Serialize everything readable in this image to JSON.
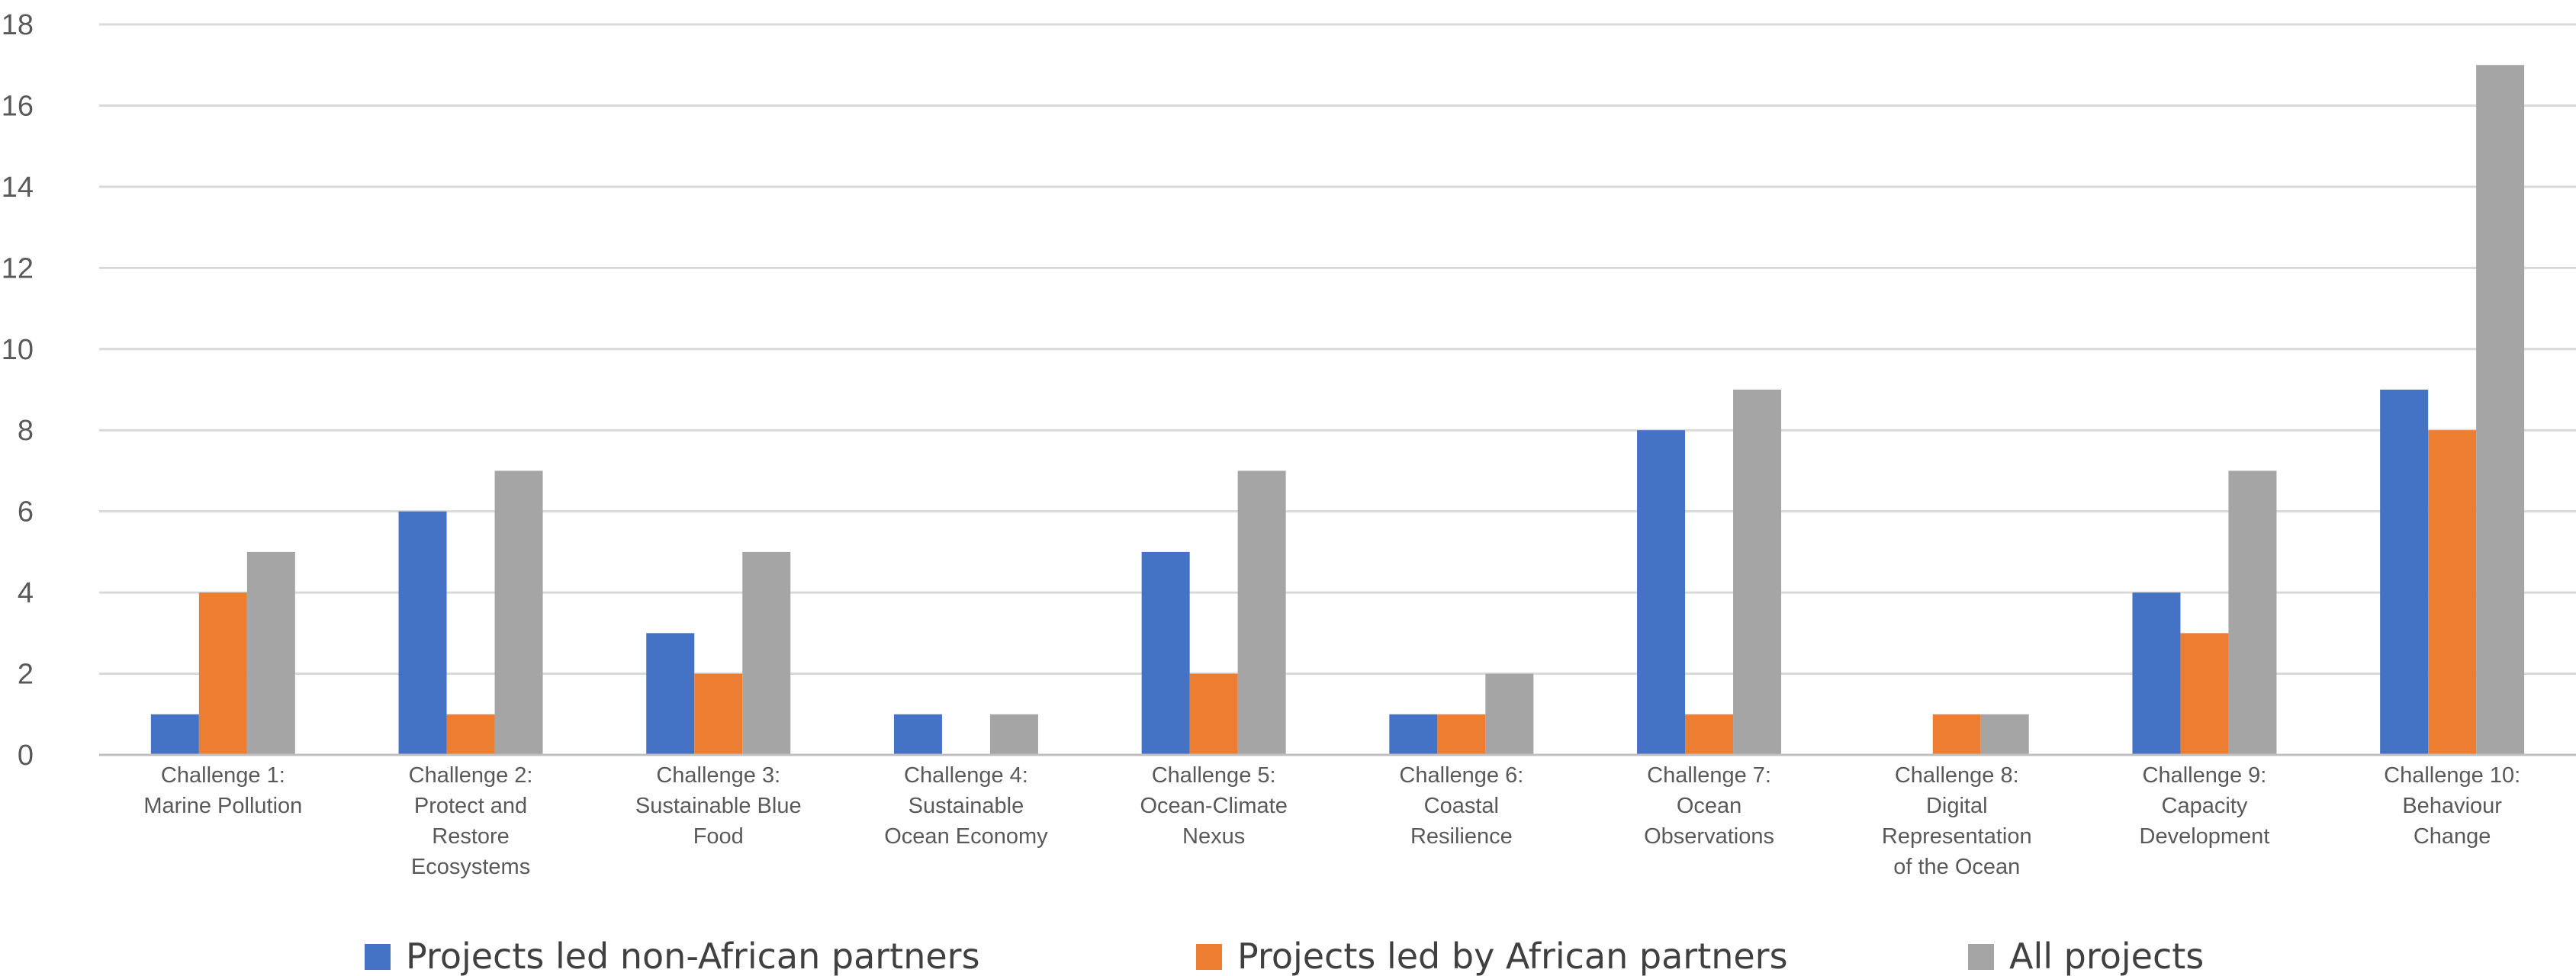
{
  "chart_data": {
    "type": "bar",
    "title": "",
    "xlabel": "",
    "ylabel": "",
    "ylim": [
      0,
      18
    ],
    "yticks": [
      0,
      2,
      4,
      6,
      8,
      10,
      12,
      14,
      16,
      18
    ],
    "grid": true,
    "legend_position": "bottom",
    "categories": [
      [
        "Challenge 1:",
        "Marine Pollution"
      ],
      [
        "Challenge 2:",
        "Protect and",
        "Restore",
        "Ecosystems"
      ],
      [
        "Challenge 3:",
        "Sustainable Blue",
        "Food"
      ],
      [
        "Challenge 4:",
        "Sustainable",
        "Ocean Economy"
      ],
      [
        "Challenge 5:",
        "Ocean-Climate",
        "Nexus"
      ],
      [
        "Challenge 6:",
        "Coastal",
        "Resilience"
      ],
      [
        "Challenge 7:",
        "Ocean",
        "Observations"
      ],
      [
        "Challenge 8:",
        "Digital",
        "Representation",
        "of the Ocean"
      ],
      [
        "Challenge 9:",
        "Capacity",
        "Development"
      ],
      [
        "Challenge 10:",
        "Behaviour",
        "Change"
      ]
    ],
    "series": [
      {
        "name": "Projects led non-African partners",
        "color": "#4472c4",
        "values": [
          1,
          6,
          3,
          1,
          5,
          1,
          8,
          0,
          4,
          9
        ]
      },
      {
        "name": "Projects led by African partners",
        "color": "#ed7d31",
        "values": [
          4,
          1,
          2,
          0,
          2,
          1,
          1,
          1,
          3,
          8
        ]
      },
      {
        "name": "All projects",
        "color": "#a5a5a5",
        "values": [
          5,
          7,
          5,
          1,
          7,
          2,
          9,
          1,
          7,
          17
        ]
      }
    ]
  }
}
